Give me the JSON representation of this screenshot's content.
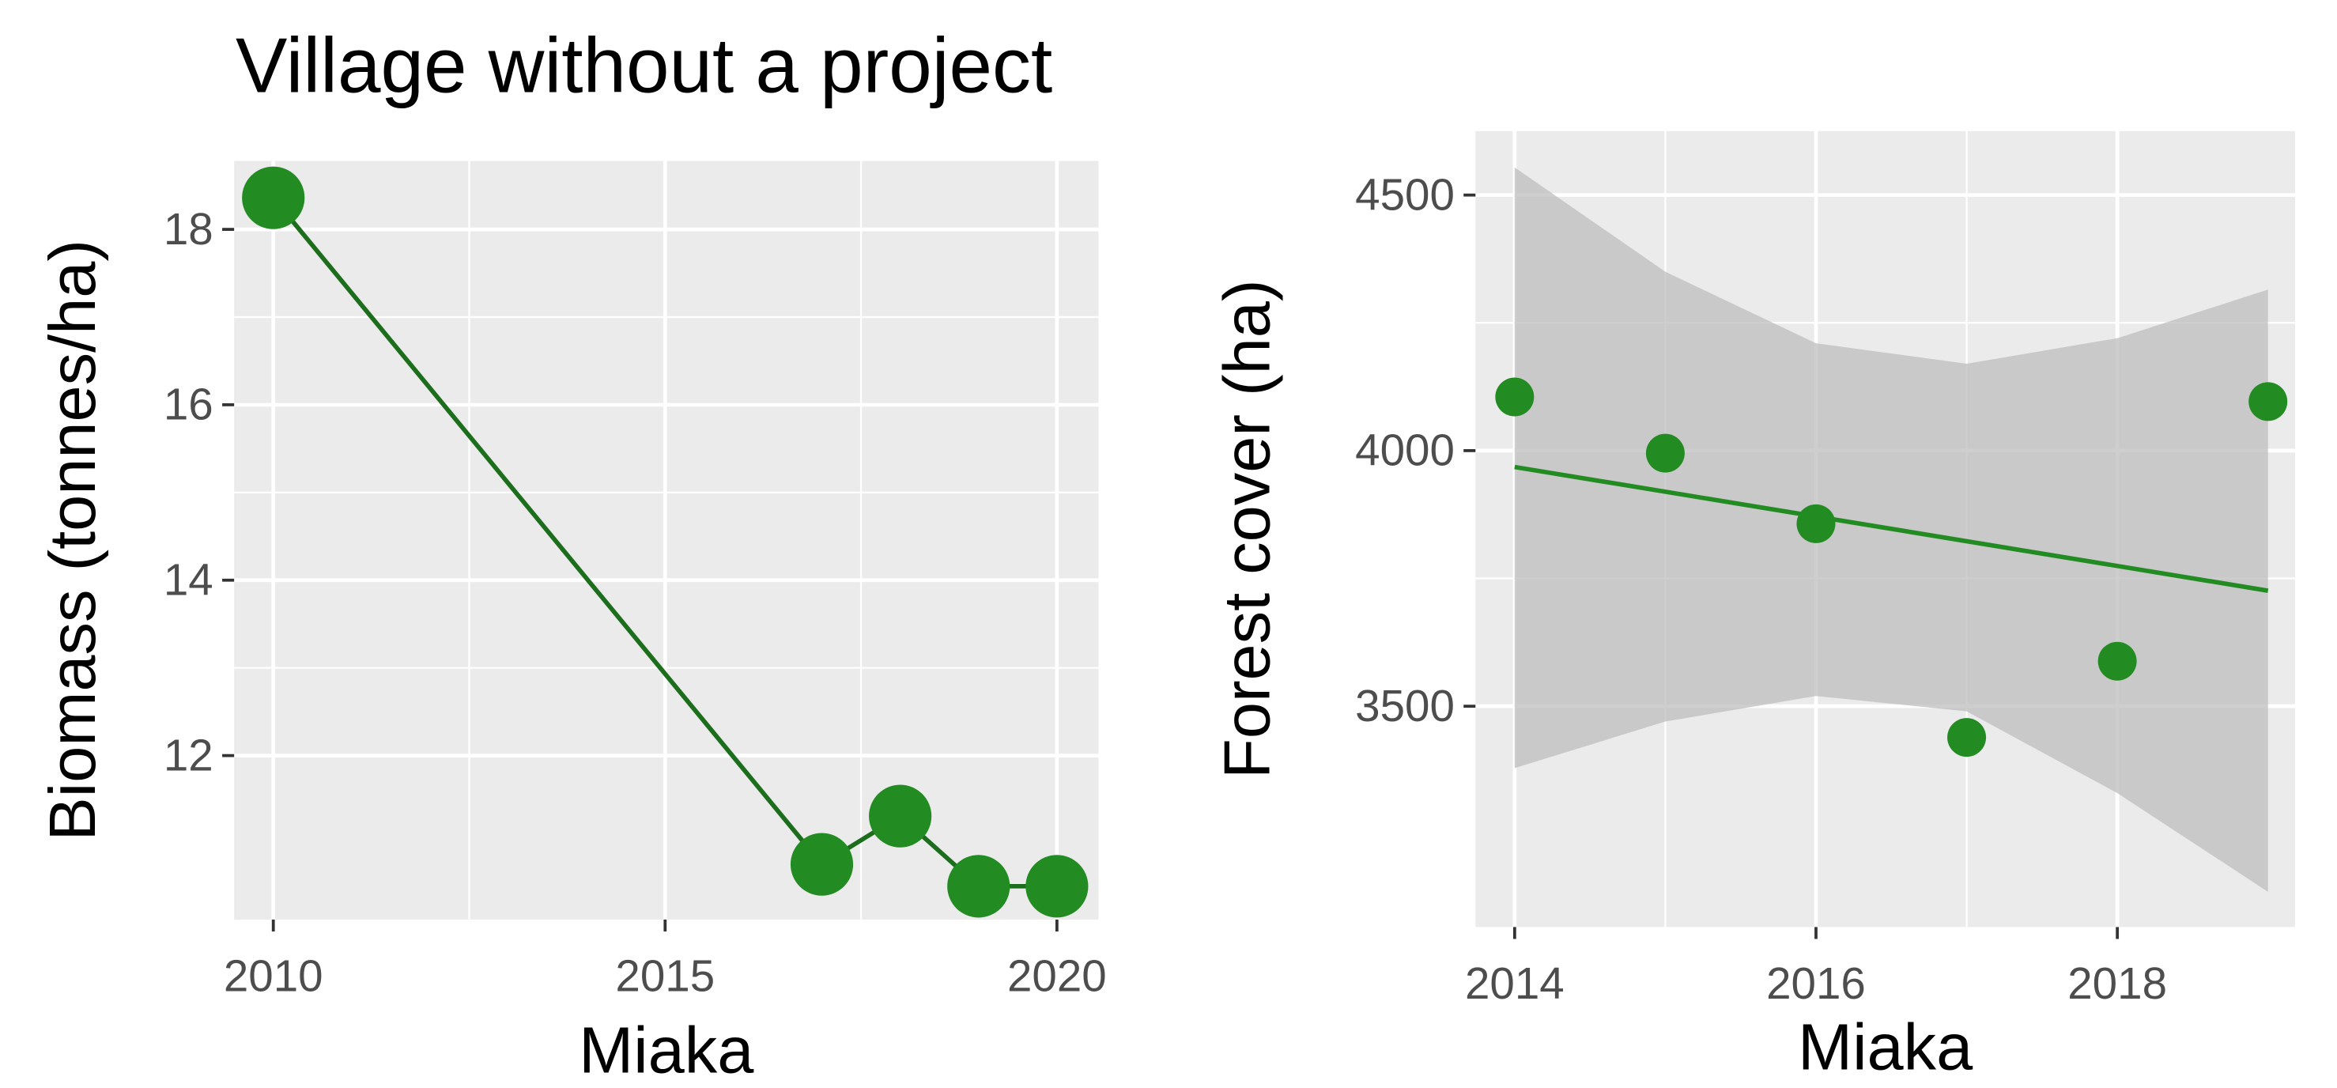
{
  "title": "Village without a project",
  "chart_data": [
    {
      "type": "line",
      "xlabel": "Miaka",
      "ylabel": "Biomass (tonnes/ha)",
      "x": [
        2010,
        2017,
        2018,
        2019,
        2020
      ],
      "series": [
        {
          "color": "#228b22",
          "line_color": "#1c6e1c",
          "values": [
            18.36,
            10.76,
            11.31,
            10.51,
            10.51
          ]
        }
      ],
      "xlim": [
        2009.5,
        2020.53
      ],
      "xticks": [
        2010,
        2015,
        2020
      ],
      "ylim": [
        10.13,
        18.78
      ],
      "yticks": [
        12,
        14,
        16,
        18
      ],
      "grid": true
    },
    {
      "type": "scatter",
      "xlabel": "Miaka",
      "ylabel": "Forest cover (ha)",
      "x": [
        2014,
        2015,
        2016,
        2017,
        2018,
        2019
      ],
      "series": [
        {
          "color": "#228b22",
          "values": [
            4105,
            3995,
            3857,
            3439,
            3588,
            4096
          ]
        }
      ],
      "fit": {
        "x": [
          2014,
          2019
        ],
        "values": [
          3968,
          3726
        ],
        "color": "#228b22"
      },
      "band": {
        "x": [
          2014,
          2015,
          2016,
          2017,
          2018,
          2019
        ],
        "upper": [
          4554,
          4350,
          4210,
          4170,
          4220,
          4315
        ],
        "lower": [
          3379,
          3470,
          3520,
          3490,
          3330,
          3137
        ],
        "color": "#bebebe"
      },
      "xlim": [
        2013.74,
        2019.18
      ],
      "xticks": [
        2014,
        2016,
        2018
      ],
      "ylim": [
        3068,
        4625
      ],
      "yticks": [
        3500,
        4000,
        4500
      ],
      "grid": true
    }
  ]
}
